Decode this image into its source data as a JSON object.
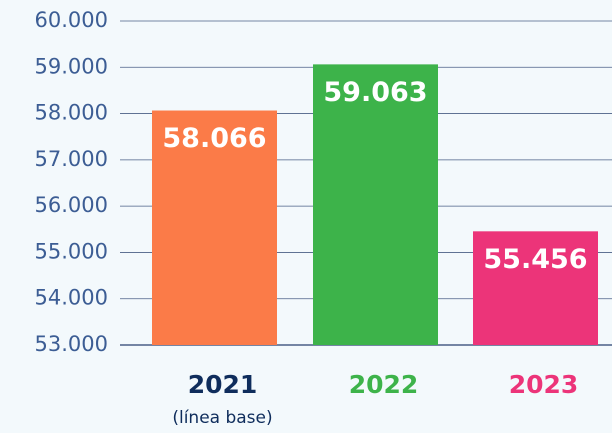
{
  "chart_data": {
    "type": "bar",
    "categories": [
      "2021",
      "2022",
      "2023"
    ],
    "category_colors": [
      "#0f2d5c",
      "#3db34a",
      "#ec3479"
    ],
    "annotation": "(línea base)",
    "values": [
      58066,
      59063,
      55456
    ],
    "value_labels": [
      "58.066",
      "59.063",
      "55.456"
    ],
    "colors": [
      "#fb7b48",
      "#3db34a",
      "#ec3479"
    ],
    "ylim": [
      53000,
      60000
    ],
    "yticks": [
      {
        "value": 53000,
        "label": "53.000"
      },
      {
        "value": 54000,
        "label": "54.000"
      },
      {
        "value": 55000,
        "label": "55.000"
      },
      {
        "value": 56000,
        "label": "56.000"
      },
      {
        "value": 57000,
        "label": "57.000"
      },
      {
        "value": 58000,
        "label": "58.000"
      },
      {
        "value": 59000,
        "label": "59.000"
      },
      {
        "value": 60000,
        "label": "60.000"
      }
    ],
    "grid": true
  }
}
